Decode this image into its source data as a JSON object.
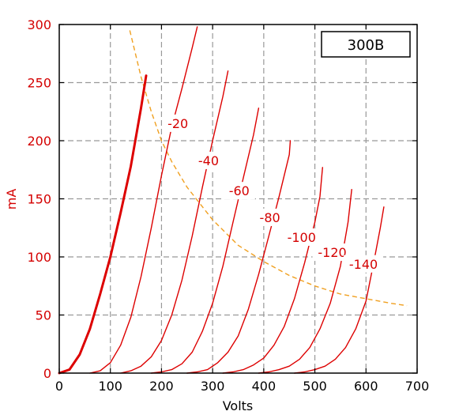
{
  "chart_data": {
    "type": "line",
    "title": "300B",
    "xlabel": "Volts",
    "ylabel": "mA",
    "xlim": [
      0,
      700
    ],
    "ylim": [
      0,
      300
    ],
    "xticks": [
      "0",
      "100",
      "200",
      "300",
      "400",
      "500",
      "600",
      "700"
    ],
    "yticks": [
      "0",
      "50",
      "100",
      "150",
      "200",
      "250",
      "300"
    ],
    "grid": true,
    "colors": {
      "curve": "#dd0000",
      "load_line": "#f0a020",
      "grid": "#999999"
    },
    "series": [
      {
        "name": "",
        "points": [
          [
            0,
            0
          ],
          [
            20,
            3
          ],
          [
            40,
            16
          ],
          [
            60,
            38
          ],
          [
            80,
            68
          ],
          [
            100,
            100
          ],
          [
            120,
            138
          ],
          [
            140,
            178
          ],
          [
            160,
            228
          ],
          [
            170,
            256
          ]
        ]
      },
      {
        "name": "-20",
        "points": [
          [
            60,
            0
          ],
          [
            80,
            2
          ],
          [
            100,
            9
          ],
          [
            120,
            24
          ],
          [
            140,
            48
          ],
          [
            160,
            83
          ],
          [
            180,
            125
          ],
          [
            200,
            170
          ],
          [
            220,
            212
          ],
          [
            240,
            245
          ],
          [
            260,
            280
          ],
          [
            270,
            298
          ]
        ]
      },
      {
        "name": "-40",
        "points": [
          [
            120,
            0
          ],
          [
            140,
            2
          ],
          [
            160,
            6
          ],
          [
            180,
            14
          ],
          [
            200,
            28
          ],
          [
            220,
            50
          ],
          [
            240,
            80
          ],
          [
            260,
            118
          ],
          [
            280,
            160
          ],
          [
            300,
            200
          ],
          [
            320,
            238
          ],
          [
            330,
            260
          ]
        ]
      },
      {
        "name": "-60",
        "points": [
          [
            180,
            0
          ],
          [
            200,
            1
          ],
          [
            220,
            3
          ],
          [
            240,
            8
          ],
          [
            260,
            18
          ],
          [
            280,
            36
          ],
          [
            300,
            60
          ],
          [
            320,
            92
          ],
          [
            340,
            130
          ],
          [
            360,
            168
          ],
          [
            380,
            205
          ],
          [
            390,
            228
          ]
        ]
      },
      {
        "name": "-80",
        "points": [
          [
            250,
            0
          ],
          [
            270,
            1
          ],
          [
            290,
            3
          ],
          [
            310,
            9
          ],
          [
            330,
            18
          ],
          [
            350,
            32
          ],
          [
            370,
            55
          ],
          [
            390,
            85
          ],
          [
            410,
            118
          ],
          [
            430,
            152
          ],
          [
            450,
            188
          ],
          [
            452,
            200
          ]
        ]
      },
      {
        "name": "-100",
        "points": [
          [
            320,
            0
          ],
          [
            340,
            1
          ],
          [
            360,
            3
          ],
          [
            380,
            7
          ],
          [
            400,
            13
          ],
          [
            420,
            24
          ],
          [
            440,
            40
          ],
          [
            460,
            64
          ],
          [
            480,
            95
          ],
          [
            500,
            130
          ],
          [
            510,
            152
          ],
          [
            515,
            177
          ]
        ]
      },
      {
        "name": "-120",
        "points": [
          [
            390,
            0
          ],
          [
            410,
            1
          ],
          [
            430,
            3
          ],
          [
            450,
            6
          ],
          [
            470,
            12
          ],
          [
            490,
            22
          ],
          [
            510,
            38
          ],
          [
            530,
            60
          ],
          [
            550,
            92
          ],
          [
            565,
            130
          ],
          [
            572,
            158
          ]
        ]
      },
      {
        "name": "-140",
        "points": [
          [
            460,
            0
          ],
          [
            480,
            1
          ],
          [
            500,
            3
          ],
          [
            520,
            6
          ],
          [
            540,
            12
          ],
          [
            560,
            22
          ],
          [
            580,
            38
          ],
          [
            600,
            62
          ],
          [
            615,
            95
          ],
          [
            628,
            125
          ],
          [
            635,
            143
          ]
        ]
      }
    ],
    "load_line": [
      [
        138,
        295
      ],
      [
        160,
        255
      ],
      [
        180,
        225
      ],
      [
        200,
        200
      ],
      [
        220,
        182
      ],
      [
        250,
        160
      ],
      [
        300,
        132
      ],
      [
        350,
        110
      ],
      [
        400,
        96
      ],
      [
        450,
        84
      ],
      [
        500,
        75
      ],
      [
        550,
        68
      ],
      [
        600,
        64
      ],
      [
        650,
        60
      ],
      [
        680,
        58
      ]
    ],
    "curve_labels": [
      {
        "text": "-20",
        "x": 232,
        "y": 213
      },
      {
        "text": "-40",
        "x": 292,
        "y": 181
      },
      {
        "text": "-60",
        "x": 352,
        "y": 155
      },
      {
        "text": "-80",
        "x": 412,
        "y": 132
      },
      {
        "text": "-100",
        "x": 474,
        "y": 115
      },
      {
        "text": "-120",
        "x": 534,
        "y": 102
      },
      {
        "text": "-140",
        "x": 595,
        "y": 92
      }
    ]
  }
}
